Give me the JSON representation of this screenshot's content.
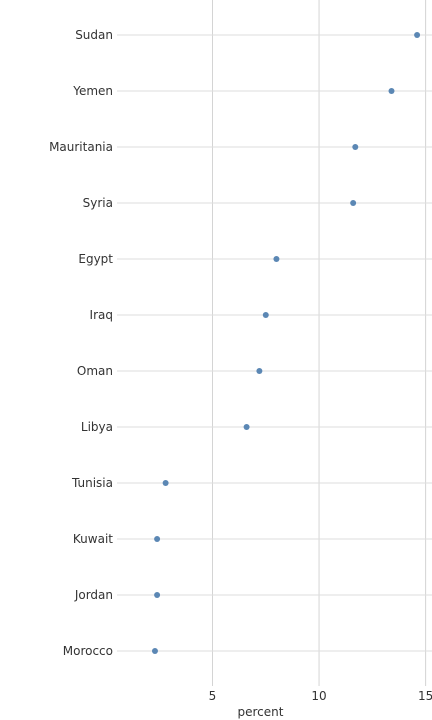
{
  "chart_data": {
    "type": "scatter",
    "title": "",
    "xlabel": "percent",
    "ylabel": "",
    "xlim": [
      0.8,
      15.3
    ],
    "xticks": [
      5,
      10,
      15
    ],
    "grid": true,
    "legend": "none",
    "point_color": "#5b87b4",
    "categories": [
      "Sudan",
      "Yemen",
      "Mauritania",
      "Syria",
      "Egypt",
      "Iraq",
      "Oman",
      "Libya",
      "Tunisia",
      "Kuwait",
      "Jordan",
      "Morocco"
    ],
    "values": [
      14.6,
      13.4,
      11.7,
      11.6,
      8.0,
      7.5,
      7.2,
      6.6,
      2.8,
      2.4,
      2.4,
      2.3
    ]
  }
}
